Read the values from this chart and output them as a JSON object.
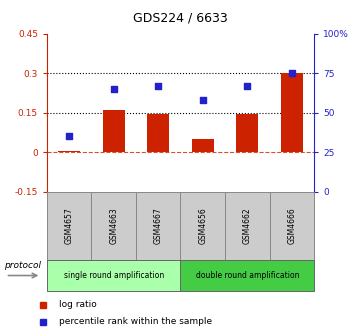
{
  "title": "GDS224 / 6633",
  "samples": [
    "GSM4657",
    "GSM4663",
    "GSM4667",
    "GSM4656",
    "GSM4662",
    "GSM4666"
  ],
  "log_ratio": [
    0.003,
    0.16,
    0.145,
    0.05,
    0.145,
    0.3
  ],
  "percentile_rank": [
    35,
    65,
    67,
    58,
    67,
    75
  ],
  "bar_color": "#cc2200",
  "dot_color": "#2222cc",
  "ylim_left": [
    -0.15,
    0.45
  ],
  "ylim_right": [
    0,
    100
  ],
  "yticks_left": [
    -0.15,
    0.0,
    0.15,
    0.3,
    0.45
  ],
  "yticks_right": [
    0,
    25,
    50,
    75,
    100
  ],
  "ytick_labels_left": [
    "-0.15",
    "0",
    "0.15",
    "0.3",
    "0.45"
  ],
  "ytick_labels_right": [
    "0",
    "25",
    "50",
    "75",
    "100%"
  ],
  "hlines_dotted": [
    0.15,
    0.3
  ],
  "hline_dashed": 0.0,
  "protocol_groups": [
    {
      "label": "single round amplification",
      "indices": [
        0,
        1,
        2
      ],
      "color": "#aaffaa"
    },
    {
      "label": "double round amplification",
      "indices": [
        3,
        4,
        5
      ],
      "color": "#44cc44"
    }
  ],
  "legend_items": [
    {
      "label": "log ratio",
      "color": "#cc2200"
    },
    {
      "label": "percentile rank within the sample",
      "color": "#2222cc"
    }
  ],
  "protocol_label": "protocol",
  "bar_width": 0.5
}
